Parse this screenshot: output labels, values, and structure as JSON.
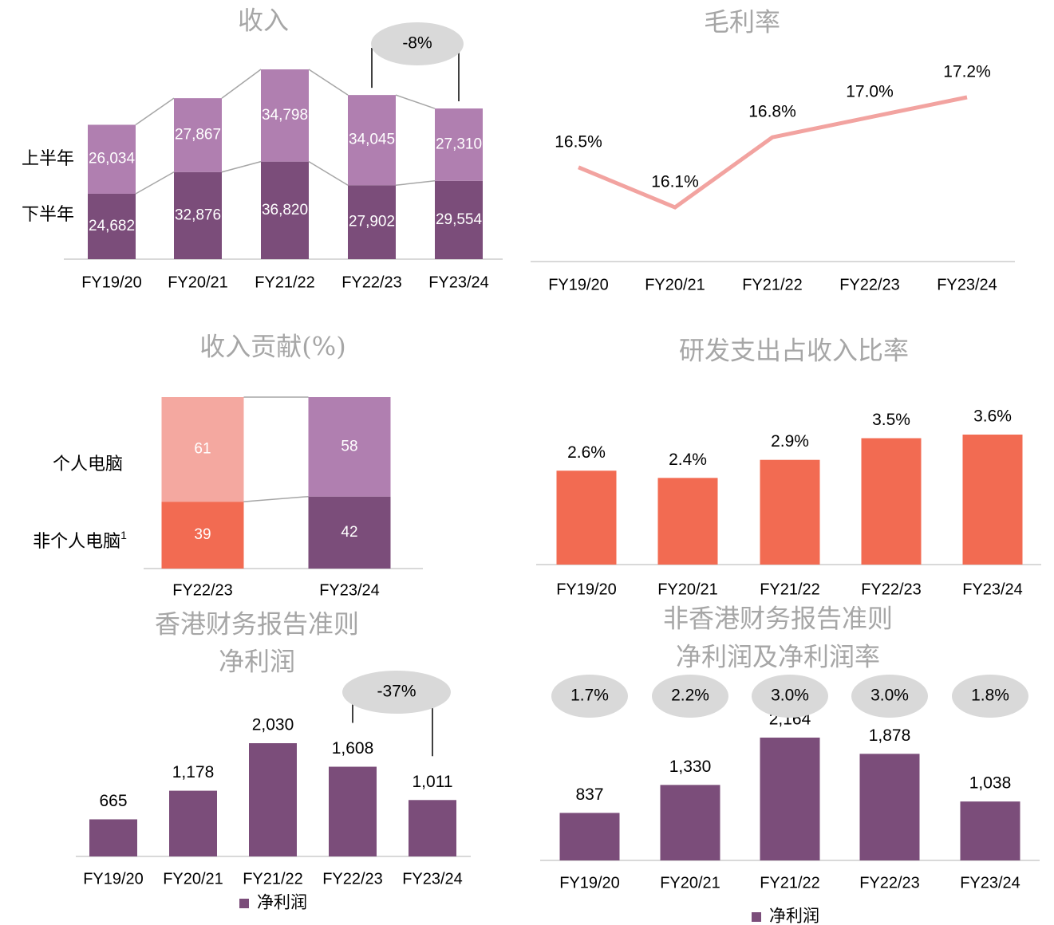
{
  "chart_data": [
    {
      "type": "stacked_bar",
      "title": "收入",
      "categories": [
        "FY19/20",
        "FY20/21",
        "FY21/22",
        "FY22/23",
        "FY23/24"
      ],
      "series": [
        {
          "name": "下半年",
          "color": "#7b4d7a",
          "values": [
            24682,
            32876,
            36820,
            27902,
            29554
          ],
          "value_labels": [
            "24,682",
            "32,876",
            "36,820",
            "27,902",
            "29,554"
          ]
        },
        {
          "name": "上半年",
          "color": "#b07fb0",
          "values": [
            26034,
            27867,
            34798,
            34045,
            27310
          ],
          "value_labels": [
            "26,034",
            "27,867",
            "34,798",
            "34,045",
            "27,310"
          ]
        }
      ],
      "annotation": "-8%"
    },
    {
      "type": "line",
      "title": "毛利率",
      "categories": [
        "FY19/20",
        "FY20/21",
        "FY21/22",
        "FY22/23",
        "FY23/24"
      ],
      "values": [
        16.5,
        16.1,
        16.8,
        17.0,
        17.2
      ],
      "value_labels": [
        "16.5%",
        "16.1%",
        "16.8%",
        "17.0%",
        "17.2%"
      ],
      "color": "#f2a3a0"
    },
    {
      "type": "stacked_bar",
      "title": "收入贡献(%)",
      "categories": [
        "FY22/23",
        "FY23/24"
      ],
      "series": [
        {
          "name": "非个人电脑",
          "footnote": "1",
          "colors": [
            "#f26b52",
            "#7b4d7a"
          ],
          "values": [
            39,
            42
          ]
        },
        {
          "name": "个人电脑",
          "colors": [
            "#f4a8a0",
            "#b07fb0"
          ],
          "values": [
            61,
            58
          ]
        }
      ]
    },
    {
      "type": "bar",
      "title": "研发支出占收入比率",
      "categories": [
        "FY19/20",
        "FY20/21",
        "FY21/22",
        "FY22/23",
        "FY23/24"
      ],
      "values": [
        2.6,
        2.4,
        2.9,
        3.5,
        3.6
      ],
      "value_labels": [
        "2.6%",
        "2.4%",
        "2.9%",
        "3.5%",
        "3.6%"
      ],
      "color": "#f26b52"
    },
    {
      "type": "bar",
      "title": [
        "香港财务报告准则",
        "净利润"
      ],
      "categories": [
        "FY19/20",
        "FY20/21",
        "FY21/22",
        "FY22/23",
        "FY23/24"
      ],
      "series": [
        {
          "name": "净利润",
          "color": "#7b4d7a",
          "values": [
            665,
            1178,
            2030,
            1608,
            1011
          ],
          "value_labels": [
            "665",
            "1,178",
            "2,030",
            "1,608",
            "1,011"
          ]
        }
      ],
      "annotation": "-37%"
    },
    {
      "type": "bar",
      "title": [
        "非香港财务报告准则",
        "净利润及净利润率"
      ],
      "categories": [
        "FY19/20",
        "FY20/21",
        "FY21/22",
        "FY22/23",
        "FY23/24"
      ],
      "series": [
        {
          "name": "净利润",
          "color": "#7b4d7a",
          "values": [
            837,
            1330,
            2164,
            1878,
            1038
          ],
          "value_labels": [
            "837",
            "1,330",
            "2,164",
            "1,878",
            "1,038"
          ]
        }
      ],
      "margin_values": [
        1.7,
        2.2,
        3.0,
        3.0,
        1.8
      ],
      "margin_labels": [
        "1.7%",
        "2.2%",
        "3.0%",
        "3.0%",
        "1.8%"
      ]
    }
  ]
}
